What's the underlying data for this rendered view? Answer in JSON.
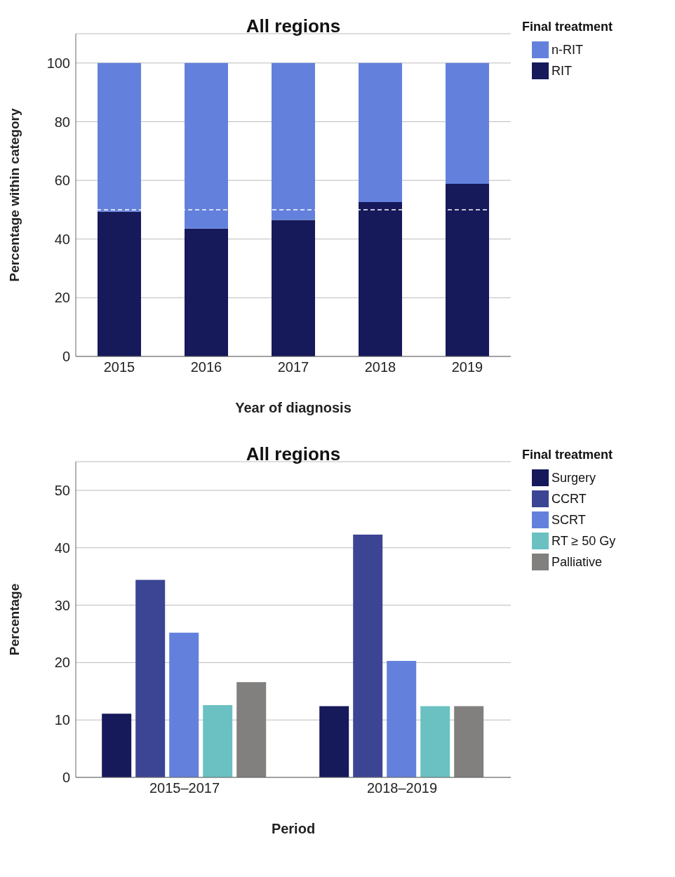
{
  "chart_data": [
    {
      "type": "bar",
      "title": "All regions",
      "xlabel": "Year of diagnosis",
      "ylabel": "Percentage within category",
      "legend_title": "Final treatment",
      "categories": [
        "2015",
        "2016",
        "2017",
        "2018",
        "2019"
      ],
      "stacked": true,
      "series": [
        {
          "name": "RIT",
          "color": "#16195a",
          "values": [
            49.3,
            43.6,
            46.5,
            52.6,
            58.8
          ]
        },
        {
          "name": "n-RIT",
          "color": "#6381dc",
          "values": [
            50.7,
            56.4,
            53.5,
            47.4,
            41.2
          ]
        }
      ],
      "ylim": [
        0,
        110
      ],
      "yticks": [
        0,
        20,
        40,
        60,
        80,
        100
      ],
      "grid": "y",
      "legend": "top right",
      "ref_lines": [
        {
          "axis": "y",
          "value": 50,
          "color": "#ffffff",
          "line_style": "dashed"
        }
      ]
    },
    {
      "type": "bar",
      "title": "All regions",
      "xlabel": "Period",
      "ylabel": "Percentage",
      "legend_title": "Final treatment",
      "categories": [
        "2015–2017",
        "2018–2019"
      ],
      "series": [
        {
          "name": "Surgery",
          "color": "#16195a",
          "values": [
            11.1,
            12.4
          ]
        },
        {
          "name": "CCRT",
          "color": "#3c4494",
          "values": [
            34.4,
            42.3
          ]
        },
        {
          "name": "SCRT",
          "color": "#6381dc",
          "values": [
            25.2,
            20.3
          ]
        },
        {
          "name": "RT ≥ 50 Gy",
          "color": "#6bc1c1",
          "values": [
            12.6,
            12.4
          ]
        },
        {
          "name": "Palliative",
          "color": "#827f7f",
          "values": [
            16.6,
            12.4
          ]
        }
      ],
      "ylim": [
        0,
        55
      ],
      "yticks": [
        0,
        10,
        20,
        30,
        40,
        50
      ],
      "grid": "y",
      "legend": "top right"
    }
  ]
}
